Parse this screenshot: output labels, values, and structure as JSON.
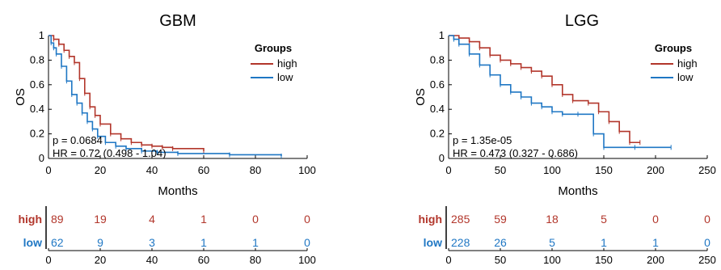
{
  "colors": {
    "high": "#b2362b",
    "low": "#1f77c4",
    "axis": "#000000"
  },
  "chart_data": [
    {
      "type": "line",
      "title": "GBM",
      "xlabel": "Months",
      "ylabel": "OS",
      "xlim": [
        0,
        100
      ],
      "ylim": [
        0,
        1
      ],
      "xticks": [
        "0",
        "20",
        "40",
        "60",
        "80",
        "100"
      ],
      "yticks": [
        "0",
        "0.2",
        "0.4",
        "0.6",
        "0.8",
        "1"
      ],
      "legend": {
        "title": "Groups",
        "placement": "top-right",
        "entries": [
          "high",
          "low"
        ]
      },
      "annotations": [
        "p = 0.0684",
        "HR = 0.72 (0.498 - 1.04)"
      ],
      "series": [
        {
          "name": "high",
          "color": "#b2362b",
          "x": [
            0,
            2,
            4,
            6,
            8,
            10,
            12,
            14,
            16,
            18,
            20,
            24,
            28,
            32,
            36,
            40,
            44,
            48,
            60
          ],
          "y": [
            1,
            0.97,
            0.93,
            0.88,
            0.83,
            0.78,
            0.65,
            0.53,
            0.42,
            0.35,
            0.28,
            0.2,
            0.16,
            0.13,
            0.11,
            0.1,
            0.09,
            0.08,
            0.06
          ]
        },
        {
          "name": "low",
          "color": "#1f77c4",
          "x": [
            0,
            1,
            2,
            3,
            5,
            7,
            9,
            11,
            13,
            15,
            17,
            19,
            22,
            26,
            30,
            36,
            42,
            50,
            70,
            90
          ],
          "y": [
            1,
            0.94,
            0.9,
            0.85,
            0.75,
            0.63,
            0.52,
            0.45,
            0.37,
            0.3,
            0.24,
            0.18,
            0.13,
            0.1,
            0.08,
            0.06,
            0.05,
            0.04,
            0.03,
            0.02
          ]
        }
      ],
      "risk_table": {
        "xticks": [
          "0",
          "20",
          "40",
          "60",
          "80",
          "100"
        ],
        "rows": [
          {
            "label": "high",
            "values": [
              "89",
              "19",
              "4",
              "1",
              "0",
              "0"
            ]
          },
          {
            "label": "low",
            "values": [
              "62",
              "9",
              "3",
              "1",
              "1",
              "0"
            ]
          }
        ]
      }
    },
    {
      "type": "line",
      "title": "LGG",
      "xlabel": "Months",
      "ylabel": "OS",
      "xlim": [
        0,
        250
      ],
      "ylim": [
        0,
        1
      ],
      "xticks": [
        "0",
        "50",
        "100",
        "150",
        "200",
        "250"
      ],
      "yticks": [
        "0",
        "0.2",
        "0.4",
        "0.6",
        "0.8",
        "1"
      ],
      "legend": {
        "title": "Groups",
        "placement": "top-right",
        "entries": [
          "high",
          "low"
        ]
      },
      "annotations": [
        "p = 1.35e-05",
        "HR = 0.473 (0.327 - 0.686)"
      ],
      "series": [
        {
          "name": "high",
          "color": "#b2362b",
          "x": [
            0,
            10,
            20,
            30,
            40,
            50,
            60,
            70,
            80,
            90,
            100,
            110,
            120,
            135,
            145,
            155,
            165,
            175,
            185
          ],
          "y": [
            1,
            0.98,
            0.95,
            0.9,
            0.84,
            0.8,
            0.77,
            0.74,
            0.71,
            0.67,
            0.6,
            0.52,
            0.47,
            0.45,
            0.38,
            0.3,
            0.22,
            0.13,
            0.13
          ]
        },
        {
          "name": "low",
          "color": "#1f77c4",
          "x": [
            0,
            5,
            10,
            20,
            30,
            40,
            50,
            60,
            70,
            80,
            90,
            100,
            110,
            125,
            140,
            150,
            180,
            215
          ],
          "y": [
            1,
            0.97,
            0.93,
            0.85,
            0.76,
            0.68,
            0.6,
            0.54,
            0.5,
            0.45,
            0.42,
            0.38,
            0.36,
            0.36,
            0.2,
            0.09,
            0.09,
            0.09
          ]
        }
      ],
      "risk_table": {
        "xticks": [
          "0",
          "50",
          "100",
          "150",
          "200",
          "250"
        ],
        "rows": [
          {
            "label": "high",
            "values": [
              "285",
              "59",
              "18",
              "5",
              "0",
              "0"
            ]
          },
          {
            "label": "low",
            "values": [
              "228",
              "26",
              "5",
              "1",
              "1",
              "0"
            ]
          }
        ]
      }
    }
  ]
}
